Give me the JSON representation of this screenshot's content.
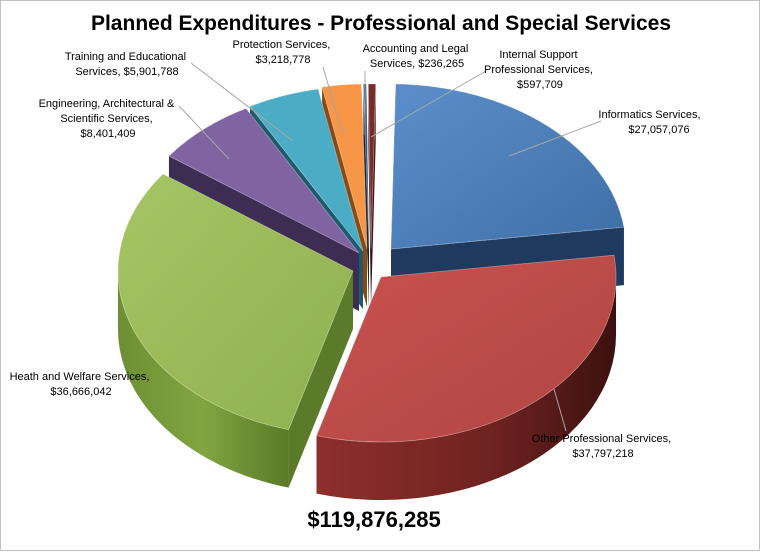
{
  "chart_data": {
    "type": "pie",
    "title": "Planned Expenditures - Professional and Special Services",
    "total_label": "$119,876,285",
    "slices": [
      {
        "name": "Informatics Services,",
        "value_label": "$27,057,076",
        "value": 27057076,
        "color": "#4f81bd",
        "side": "#1f3a5f"
      },
      {
        "name": "Other Professional Services,",
        "value_label": "$37,797,218",
        "value": 37797218,
        "color": "#c0504d",
        "side": "#6b1f1d"
      },
      {
        "name": "Heath and Welfare Services,",
        "value_label": "$36,666,042",
        "value": 36666042,
        "color": "#9bbb59",
        "side": "#5b7a2a"
      },
      {
        "name": "Engineering, Architectural & Scientific Services,",
        "value_label": "$8,401,409",
        "value": 8401409,
        "color": "#8064a2",
        "side": "#3d2d52"
      },
      {
        "name": "Training and Educational Services,",
        "value_label": "$5,901,788",
        "value": 5901788,
        "color": "#4bacc6",
        "side": "#1d5a6b"
      },
      {
        "name": "Protection Services,",
        "value_label": "$3,218,778",
        "value": 3218778,
        "color": "#f79646",
        "side": "#8a4a12"
      },
      {
        "name": "Accounting and Legal Services,",
        "value_label": "$236,265",
        "value": 236265,
        "color": "#2c4d75",
        "side": "#15263a"
      },
      {
        "name": "Internal Support Professional Services,",
        "value_label": "$597,709",
        "value": 597709,
        "color": "#772c2a",
        "side": "#3a1514"
      }
    ]
  },
  "labels": {
    "informatics": [
      "Informatics Services,",
      "$27,057,076"
    ],
    "other": [
      "Other Professional Services,",
      "$37,797,218"
    ],
    "health": [
      "Heath and Welfare Services,",
      "$36,666,042"
    ],
    "engineering": [
      "Engineering, Architectural &",
      "Scientific Services,",
      "$8,401,409"
    ],
    "training": [
      "Training and Educational",
      "Services, $5,901,788"
    ],
    "protection": [
      "Protection Services,",
      "$3,218,778"
    ],
    "accounting": [
      "Accounting and Legal",
      "Services, $236,265"
    ],
    "internal": [
      "Internal Support",
      "Professional Services,",
      "$597,709"
    ]
  }
}
